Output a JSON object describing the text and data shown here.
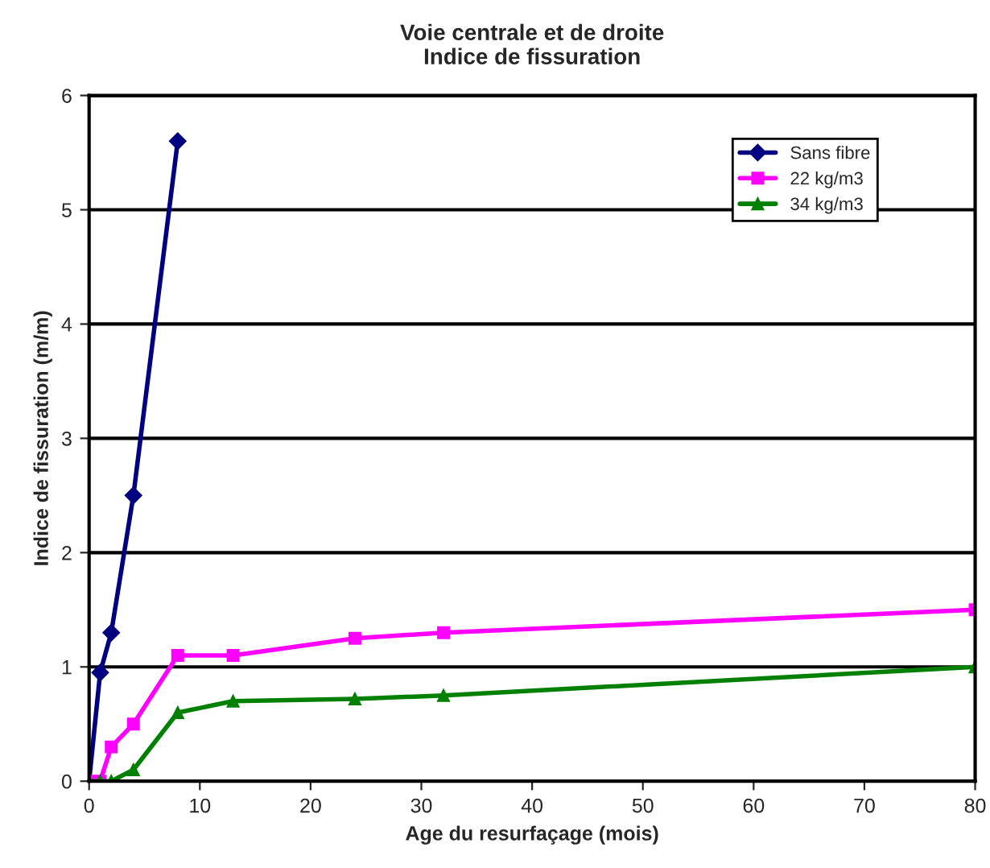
{
  "chart_data": {
    "type": "line",
    "title": "Voie centrale et de droite\nIndice de fissuration",
    "xlabel": "Age du resurfaçage (mois)",
    "ylabel": "Indice de fissuration (m/m)",
    "series": [
      {
        "name": "Sans fibre",
        "color": "#000080",
        "marker": "diamond",
        "x": [
          0,
          1,
          2,
          4,
          8
        ],
        "values": [
          0,
          0.95,
          1.3,
          2.5,
          5.6
        ]
      },
      {
        "name": "22 kg/m3",
        "color": "#ff00ff",
        "marker": "square",
        "x": [
          0,
          1,
          2,
          4,
          8,
          13,
          24,
          32,
          80
        ],
        "values": [
          0,
          0,
          0.3,
          0.5,
          1.1,
          1.1,
          1.25,
          1.3,
          1.5
        ]
      },
      {
        "name": "34 kg/m3",
        "color": "#008000",
        "marker": "triangle",
        "x": [
          0,
          1,
          2,
          4,
          8,
          13,
          24,
          32,
          80
        ],
        "values": [
          0,
          0,
          0,
          0.1,
          0.6,
          0.7,
          0.72,
          0.75,
          1.0
        ]
      }
    ],
    "xlim": [
      0,
      80
    ],
    "xticks": [
      0,
      10,
      20,
      30,
      40,
      50,
      60,
      70,
      80
    ],
    "ylim": [
      0,
      6
    ],
    "yticks": [
      0,
      1,
      2,
      3,
      4,
      5,
      6
    ],
    "grid": "y",
    "legend": "top right"
  }
}
